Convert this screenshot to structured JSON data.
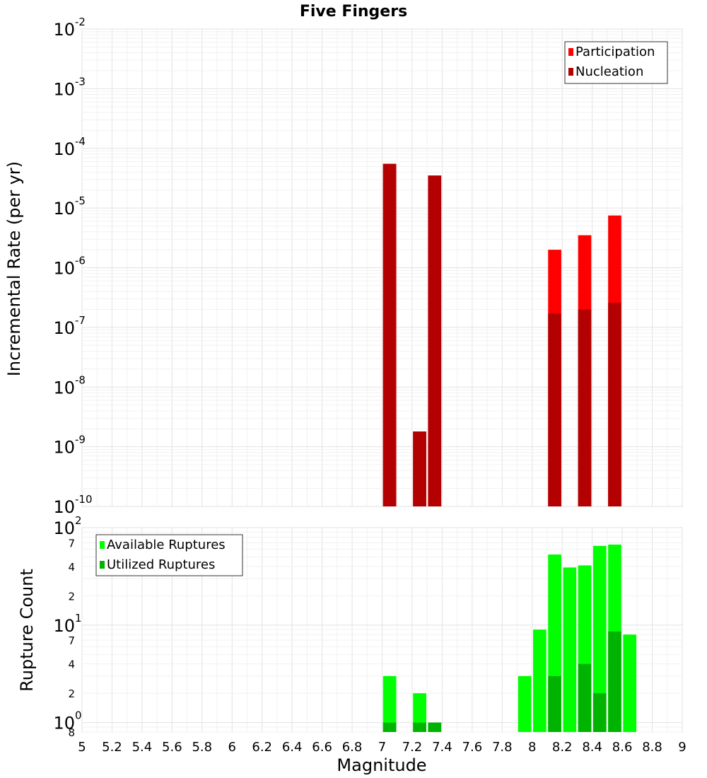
{
  "chart_data": [
    {
      "type": "bar",
      "title": "Five Fingers",
      "ylabel": "Incremental Rate (per yr)",
      "xlabel": "",
      "yscale": "log",
      "ylim": [
        1e-10,
        0.01
      ],
      "xlim": [
        5,
        9
      ],
      "legend_position": "top-right",
      "series": [
        {
          "name": "Participation",
          "color": "#ff0000",
          "points": [
            {
              "x": 7.05,
              "y": 5.5e-05
            },
            {
              "x": 7.25,
              "y": 1.8e-09
            },
            {
              "x": 7.35,
              "y": 3.5e-05
            },
            {
              "x": 8.15,
              "y": 2e-06
            },
            {
              "x": 8.35,
              "y": 3.5e-06
            },
            {
              "x": 8.55,
              "y": 7.5e-06
            }
          ]
        },
        {
          "name": "Nucleation",
          "color": "#b30000",
          "points": [
            {
              "x": 7.05,
              "y": 5.5e-05
            },
            {
              "x": 7.25,
              "y": 1.8e-09
            },
            {
              "x": 7.35,
              "y": 3.5e-05
            },
            {
              "x": 8.15,
              "y": 1.7e-07
            },
            {
              "x": 8.35,
              "y": 2e-07
            },
            {
              "x": 8.55,
              "y": 2.6e-07
            }
          ]
        }
      ],
      "y_major_ticks": [
        {
          "base": "10",
          "exp": "-2",
          "value": 0.01
        },
        {
          "base": "10",
          "exp": "-3",
          "value": 0.001
        },
        {
          "base": "10",
          "exp": "-4",
          "value": 0.0001
        },
        {
          "base": "10",
          "exp": "-5",
          "value": 1e-05
        },
        {
          "base": "10",
          "exp": "-6",
          "value": 1e-06
        },
        {
          "base": "10",
          "exp": "-7",
          "value": 1e-07
        },
        {
          "base": "10",
          "exp": "-8",
          "value": 1e-08
        },
        {
          "base": "10",
          "exp": "-9",
          "value": 1e-09
        },
        {
          "base": "10",
          "exp": "-10",
          "value": 1e-10
        }
      ],
      "grid": true
    },
    {
      "type": "bar",
      "title": "",
      "ylabel": "Rupture Count",
      "xlabel": "Magnitude",
      "yscale": "log",
      "ylim": [
        0.8,
        100
      ],
      "xlim": [
        5,
        9
      ],
      "legend_position": "top-left",
      "series": [
        {
          "name": "Available Ruptures",
          "color": "#00ff00",
          "points": [
            {
              "x": 7.05,
              "y": 3
            },
            {
              "x": 7.25,
              "y": 2
            },
            {
              "x": 7.35,
              "y": 1
            },
            {
              "x": 7.95,
              "y": 3
            },
            {
              "x": 8.05,
              "y": 9
            },
            {
              "x": 8.15,
              "y": 53
            },
            {
              "x": 8.25,
              "y": 39
            },
            {
              "x": 8.35,
              "y": 41
            },
            {
              "x": 8.45,
              "y": 65
            },
            {
              "x": 8.55,
              "y": 67
            },
            {
              "x": 8.65,
              "y": 8
            }
          ]
        },
        {
          "name": "Utilized Ruptures",
          "color": "#00b300",
          "points": [
            {
              "x": 7.05,
              "y": 1
            },
            {
              "x": 7.25,
              "y": 1
            },
            {
              "x": 7.35,
              "y": 1
            },
            {
              "x": 8.15,
              "y": 3
            },
            {
              "x": 8.35,
              "y": 4
            },
            {
              "x": 8.45,
              "y": 2
            },
            {
              "x": 8.55,
              "y": 8.6
            }
          ]
        }
      ],
      "y_major_ticks": [
        {
          "base": "10",
          "exp": "2",
          "value": 100
        },
        {
          "base": "10",
          "exp": "1",
          "value": 10
        },
        {
          "base": "10",
          "exp": "0",
          "value": 1
        }
      ],
      "y_minor_ticks": [
        {
          "label": "7",
          "value": 70
        },
        {
          "label": "4",
          "value": 40
        },
        {
          "label": "2",
          "value": 20
        },
        {
          "label": "7",
          "value": 7
        },
        {
          "label": "4",
          "value": 4
        },
        {
          "label": "2",
          "value": 2
        },
        {
          "label": "8",
          "value": 0.8
        }
      ],
      "x_ticks": [
        "5",
        "5.2",
        "5.4",
        "5.6",
        "5.8",
        "6",
        "6.2",
        "6.4",
        "6.6",
        "6.8",
        "7",
        "7.2",
        "7.4",
        "7.6",
        "7.8",
        "8",
        "8.2",
        "8.4",
        "8.6",
        "8.8",
        "9"
      ],
      "grid": true
    }
  ]
}
